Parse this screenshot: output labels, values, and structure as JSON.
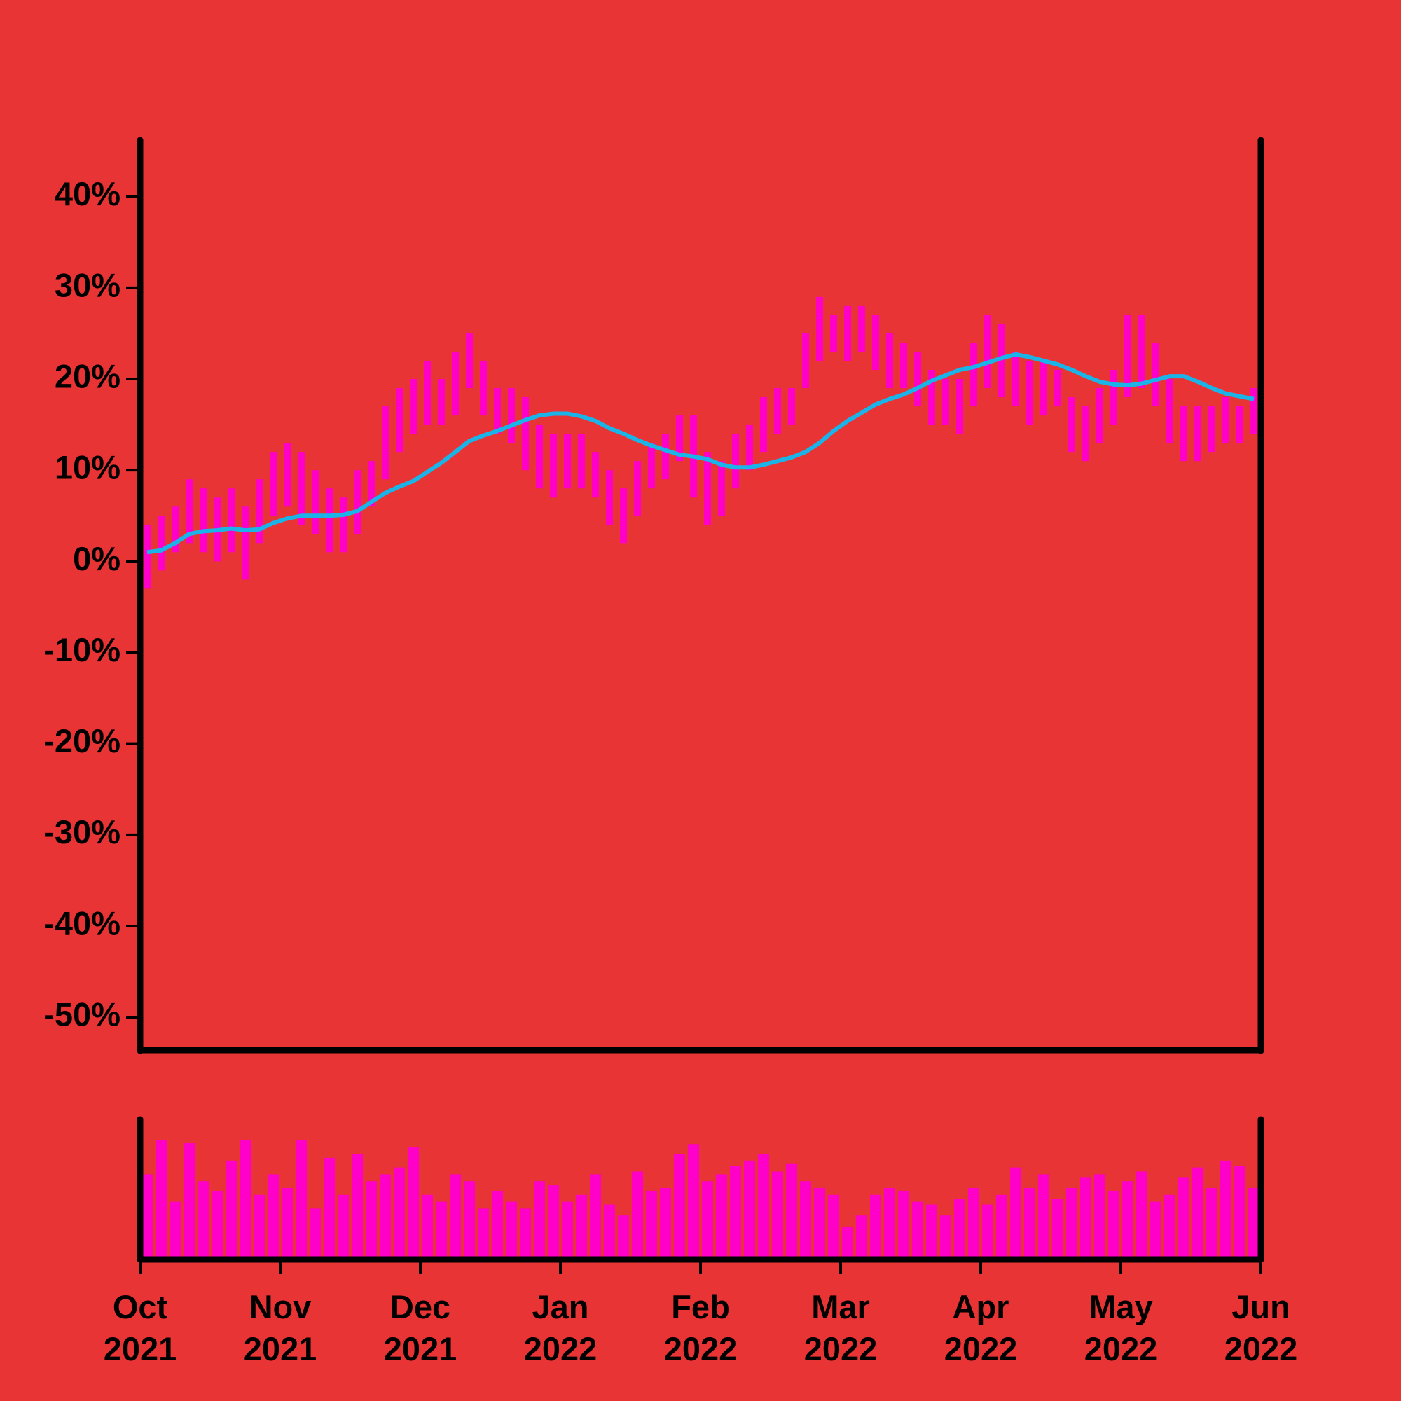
{
  "chart_data": {
    "type": "range-bar",
    "x": [
      0.05,
      0.15,
      0.25,
      0.35,
      0.45,
      0.55,
      0.65,
      0.75,
      0.85,
      0.95,
      1.05,
      1.15,
      1.25,
      1.35,
      1.45,
      1.55,
      1.65,
      1.75,
      1.85,
      1.95,
      2.05,
      2.15,
      2.25,
      2.35,
      2.45,
      2.55,
      2.65,
      2.75,
      2.85,
      2.95,
      3.05,
      3.15,
      3.25,
      3.35,
      3.45,
      3.55,
      3.65,
      3.75,
      3.85,
      3.95,
      4.05,
      4.15,
      4.25,
      4.35,
      4.45,
      4.55,
      4.65,
      4.75,
      4.85,
      4.95,
      5.05,
      5.15,
      5.25,
      5.35,
      5.45,
      5.55,
      5.65,
      5.75,
      5.85,
      5.95,
      6.05,
      6.15,
      6.25,
      6.35,
      6.45,
      6.55,
      6.65,
      6.75,
      6.85,
      6.95,
      7.05,
      7.15,
      7.25,
      7.35,
      7.45,
      7.55,
      7.65,
      7.75,
      7.85,
      7.95
    ],
    "low": [
      -3,
      -1,
      1,
      2,
      1,
      0,
      1,
      -2,
      2,
      5,
      6,
      4,
      3,
      1,
      1,
      3,
      6,
      9,
      12,
      14,
      15,
      15,
      16,
      19,
      16,
      14,
      13,
      10,
      8,
      7,
      8,
      8,
      7,
      4,
      2,
      5,
      8,
      9,
      11,
      7,
      4,
      5,
      8,
      10,
      12,
      14,
      15,
      19,
      22,
      23,
      22,
      23,
      21,
      19,
      19,
      17,
      15,
      15,
      14,
      17,
      19,
      18,
      17,
      15,
      16,
      17,
      12,
      11,
      13,
      15,
      18,
      19,
      17,
      13,
      11,
      11,
      12,
      13,
      13,
      14
    ],
    "high": [
      4,
      5,
      6,
      9,
      8,
      7,
      8,
      6,
      9,
      12,
      13,
      12,
      10,
      8,
      7,
      10,
      11,
      17,
      19,
      20,
      22,
      20,
      23,
      25,
      22,
      19,
      19,
      18,
      15,
      14,
      14,
      14,
      12,
      10,
      8,
      11,
      13,
      14,
      16,
      16,
      12,
      11,
      14,
      15,
      18,
      19,
      19,
      25,
      29,
      27,
      28,
      28,
      27,
      25,
      24,
      23,
      21,
      20,
      20,
      24,
      27,
      26,
      23,
      22,
      22,
      21,
      18,
      17,
      19,
      21,
      27,
      27,
      24,
      20,
      17,
      17,
      17,
      18,
      17,
      19
    ],
    "ma": [
      1,
      1.2,
      2,
      3,
      3.3,
      3.4,
      3.6,
      3.4,
      3.5,
      4.2,
      4.7,
      5,
      5,
      5,
      5.1,
      5.5,
      6.5,
      7.5,
      8.2,
      8.8,
      9.8,
      10.8,
      12,
      13.2,
      13.8,
      14.3,
      14.9,
      15.5,
      16,
      16.2,
      16.2,
      15.9,
      15.4,
      14.6,
      14,
      13.3,
      12.7,
      12.2,
      11.7,
      11.5,
      11.2,
      10.6,
      10.3,
      10.3,
      10.6,
      11,
      11.4,
      12,
      13,
      14.3,
      15.4,
      16.3,
      17.2,
      17.8,
      18.3,
      19,
      19.8,
      20.4,
      21,
      21.3,
      21.8,
      22.3,
      22.7,
      22.4,
      22,
      21.6,
      21,
      20.3,
      19.7,
      19.4,
      19.3,
      19.5,
      19.9,
      20.3,
      20.3,
      19.7,
      19,
      18.4,
      18.1,
      17.8
    ],
    "volume": [
      60,
      85,
      40,
      83,
      55,
      48,
      70,
      85,
      45,
      60,
      50,
      85,
      35,
      72,
      45,
      75,
      55,
      60,
      65,
      80,
      45,
      40,
      60,
      55,
      35,
      48,
      40,
      35,
      55,
      52,
      40,
      45,
      60,
      38,
      30,
      62,
      48,
      50,
      75,
      82,
      55,
      60,
      66,
      70,
      75,
      62,
      68,
      55,
      50,
      45,
      22,
      30,
      45,
      50,
      48,
      40,
      38,
      30,
      42,
      50,
      38,
      45,
      65,
      50,
      60,
      42,
      50,
      58,
      60,
      48,
      55,
      62,
      40,
      45,
      58,
      65,
      50,
      70,
      66,
      50
    ],
    "bar_color": "#ff00c8",
    "ma_color": "#1ab4e8",
    "volume_color": "#ff00c8",
    "xlim": [
      0,
      8
    ],
    "xticks": [
      {
        "value": 0,
        "label": "Oct 2021"
      },
      {
        "value": 1,
        "label": "Nov 2021"
      },
      {
        "value": 2,
        "label": "Dec 2021"
      },
      {
        "value": 3,
        "label": "Jan 2022"
      },
      {
        "value": 4,
        "label": "Feb 2022"
      },
      {
        "value": 5,
        "label": "Mar 2022"
      },
      {
        "value": 6,
        "label": "Apr 2022"
      },
      {
        "value": 7,
        "label": "May 2022"
      },
      {
        "value": 8,
        "label": "Jun 2022"
      }
    ],
    "ylim": [
      -53.6,
      46.2
    ],
    "yticks": [
      {
        "value": 40,
        "label": "40%"
      },
      {
        "value": 30,
        "label": "30%"
      },
      {
        "value": 20,
        "label": "20%"
      },
      {
        "value": 10,
        "label": "10%"
      },
      {
        "value": 0,
        "label": "0%"
      },
      {
        "value": -10,
        "label": "-10%"
      },
      {
        "value": -20,
        "label": "-20%"
      },
      {
        "value": -30,
        "label": "-30%"
      },
      {
        "value": -40,
        "label": "-40%"
      },
      {
        "value": -50,
        "label": "-50%"
      }
    ],
    "volume_lim": [
      0,
      100
    ]
  }
}
